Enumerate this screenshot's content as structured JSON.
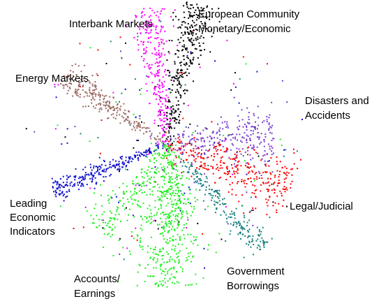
{
  "chart_data": {
    "type": "scatter",
    "title": "",
    "xlabel": "",
    "ylabel": "",
    "grid": false,
    "legend": "none",
    "note": "Unlabeled 2-D document embedding; clusters radiate from a shared center. Values are relative, axes not printed.",
    "series": [
      {
        "name": "Interbank Markets",
        "color": "#ff00ff",
        "arm": {
          "from": [
            0,
            0
          ],
          "to": [
            -0.12,
            0.95
          ]
        },
        "spread": 0.05,
        "count": 260
      },
      {
        "name": "European Community Monetary/Economic",
        "color": "#000000",
        "arm": {
          "from": [
            0,
            0
          ],
          "to": [
            0.22,
            0.98
          ]
        },
        "spread": 0.05,
        "count": 320
      },
      {
        "name": "Energy Markets",
        "color": "#9a6a60",
        "arm": {
          "from": [
            0,
            0
          ],
          "to": [
            -0.72,
            0.48
          ]
        },
        "spread": 0.04,
        "count": 240
      },
      {
        "name": "Disasters and Accidents",
        "color": "#7a3fd0",
        "arm": {
          "from": [
            0,
            0
          ],
          "to": [
            0.75,
            0.05
          ]
        },
        "spread": 0.08,
        "count": 260
      },
      {
        "name": "Legal/Judicial",
        "color": "#ff0000",
        "arm": {
          "from": [
            0,
            0
          ],
          "to": [
            0.86,
            -0.32
          ]
        },
        "spread": 0.08,
        "count": 300
      },
      {
        "name": "Government Borrowings",
        "color": "#1a8080",
        "arm": {
          "from": [
            0.1,
            -0.1
          ],
          "to": [
            0.66,
            -0.74
          ]
        },
        "spread": 0.04,
        "count": 200
      },
      {
        "name": "Leading Economic Indicators",
        "color": "#1010d0",
        "arm": {
          "from": [
            0,
            0
          ],
          "to": [
            -0.8,
            -0.32
          ]
        },
        "spread": 0.03,
        "count": 260
      },
      {
        "name": "Accounts/Earnings",
        "color": "#22ee22",
        "arm": {
          "from": [
            0,
            0
          ],
          "to": [
            0.02,
            -1.0
          ]
        },
        "spread": 0.1,
        "count": 420
      },
      {
        "name": "Accounts/Earnings",
        "color": "#22ee22",
        "arm": {
          "from": [
            0,
            0
          ],
          "to": [
            -0.45,
            -0.62
          ]
        },
        "spread": 0.06,
        "count": 150
      },
      {
        "name": "Accounts/Earnings",
        "color": "#22ee22",
        "arm": {
          "from": [
            0,
            0
          ],
          "to": [
            0.12,
            -0.5
          ]
        },
        "spread": 0.05,
        "count": 100
      }
    ],
    "background_noise": {
      "colors": [
        "#7a3fd0",
        "#ff0000",
        "#22ee22",
        "#1010d0",
        "#ff00ff",
        "#1a8080",
        "#000000"
      ],
      "count": 260
    }
  },
  "labels": {
    "interbank": "Interbank Markets",
    "ec_line1": "European Community",
    "ec_line2": "Monetary/Economic",
    "energy": "Energy Markets",
    "disasters_line1": "Disasters and",
    "disasters_line2": "Accidents",
    "legal": "Legal/Judicial",
    "leading_line1": "Leading",
    "leading_line2": "Economic",
    "leading_line3": "Indicators",
    "accounts_line1": "Accounts/",
    "accounts_line2": "Earnings",
    "gov_line1": "Government",
    "gov_line2": "Borrowings"
  }
}
